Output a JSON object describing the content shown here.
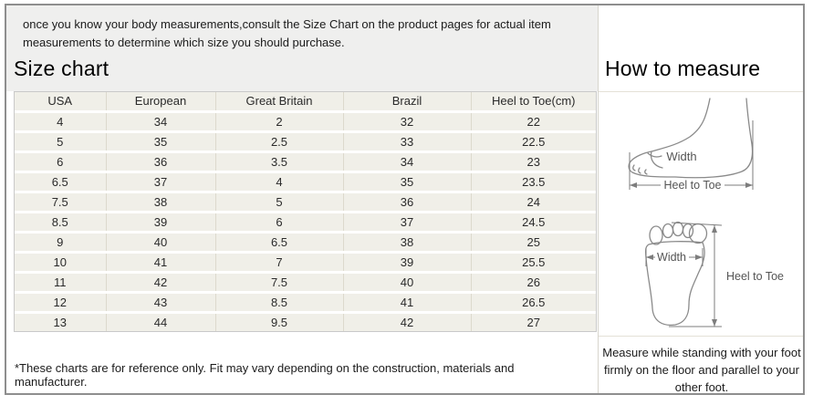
{
  "page": {
    "intro": "once you know your body measurements,consult the Size Chart on the product pages for actual item measurements to determine which size you should purchase."
  },
  "size_chart": {
    "title": "Size chart",
    "footnote": "*These charts are for reference only. Fit may vary depending on the construction, materials and manufacturer."
  },
  "chart_data": {
    "type": "table",
    "title": "Size chart",
    "columns": [
      "USA",
      "European",
      "Great Britain",
      "Brazil",
      "Heel to Toe(cm)"
    ],
    "rows": [
      [
        "4",
        "34",
        "2",
        "32",
        "22"
      ],
      [
        "5",
        "35",
        "2.5",
        "33",
        "22.5"
      ],
      [
        "6",
        "36",
        "3.5",
        "34",
        "23"
      ],
      [
        "6.5",
        "37",
        "4",
        "35",
        "23.5"
      ],
      [
        "7.5",
        "38",
        "5",
        "36",
        "24"
      ],
      [
        "8.5",
        "39",
        "6",
        "37",
        "24.5"
      ],
      [
        "9",
        "40",
        "6.5",
        "38",
        "25"
      ],
      [
        "10",
        "41",
        "7",
        "39",
        "25.5"
      ],
      [
        "11",
        "42",
        "7.5",
        "40",
        "26"
      ],
      [
        "12",
        "43",
        "8.5",
        "41",
        "26.5"
      ],
      [
        "13",
        "44",
        "9.5",
        "42",
        "27"
      ]
    ]
  },
  "how_to_measure": {
    "title": "How to measure",
    "side_diagram": {
      "width_label": "Width",
      "length_label": "Heel to Toe"
    },
    "sole_diagram": {
      "width_label": "Width",
      "length_label": "Heel to Toe"
    },
    "note": "Measure while standing with your foot firmly on the floor and parallel to your other foot."
  },
  "colors": {
    "banner_bg": "#efefee",
    "table_cell_bg": "#f0efe8",
    "table_border": "#c9c9c9",
    "frame_border": "#8e8e8e",
    "diagram_stroke": "#8a8a8a",
    "label_text": "#555555"
  }
}
